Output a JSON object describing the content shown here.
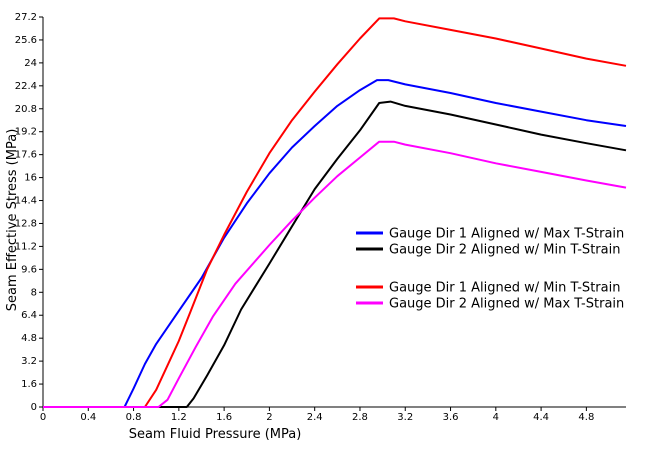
{
  "chart_data": {
    "type": "line",
    "title": "",
    "xlabel": "Seam Fluid Pressure (MPa)",
    "ylabel": "Seam Effective Stress (MPa)",
    "xlim": [
      0,
      5.15
    ],
    "ylim": [
      0,
      27.2
    ],
    "x_ticks": [
      0,
      0.4,
      0.8,
      1.2,
      1.6,
      2,
      2.4,
      2.8,
      3.2,
      3.6,
      4,
      4.4,
      4.8
    ],
    "x_tick_labels": [
      "0",
      "0.4",
      "0.8",
      "1.2",
      "1.6",
      "2",
      "2.4",
      "2.8",
      "3.2",
      "3.6",
      "4",
      "4.4",
      "4.8"
    ],
    "y_ticks": [
      0,
      1.6,
      3.2,
      4.8,
      6.4,
      8,
      9.6,
      11.2,
      12.8,
      14.4,
      16,
      17.6,
      19.2,
      20.8,
      22.4,
      24,
      25.6,
      27.2
    ],
    "y_tick_labels": [
      "0",
      "1.6",
      "3.2",
      "4.8",
      "6.4",
      "8",
      "9.6",
      "11.2",
      "12.8",
      "14.4",
      "16",
      "17.6",
      "19.2",
      "20.8",
      "22.4",
      "24",
      "25.6",
      "27.2"
    ],
    "grid": false,
    "legend_position": "right-middle",
    "series": [
      {
        "name": "Gauge Dir 1 Aligned w/ Max T-Strain",
        "color": "#0000ff",
        "points": [
          [
            0,
            0
          ],
          [
            0.72,
            0
          ],
          [
            0.8,
            1.3
          ],
          [
            0.9,
            3.0
          ],
          [
            1.0,
            4.4
          ],
          [
            1.2,
            6.7
          ],
          [
            1.4,
            9.0
          ],
          [
            1.6,
            11.8
          ],
          [
            1.8,
            14.2
          ],
          [
            2.0,
            16.3
          ],
          [
            2.2,
            18.1
          ],
          [
            2.4,
            19.6
          ],
          [
            2.6,
            21.0
          ],
          [
            2.8,
            22.1
          ],
          [
            2.95,
            22.8
          ],
          [
            3.05,
            22.8
          ],
          [
            3.2,
            22.5
          ],
          [
            3.6,
            21.9
          ],
          [
            4.0,
            21.2
          ],
          [
            4.4,
            20.6
          ],
          [
            4.8,
            20.0
          ],
          [
            5.15,
            19.6
          ]
        ]
      },
      {
        "name": "Gauge Dir 2 Aligned w/ Min T-Strain",
        "color": "#000000",
        "points": [
          [
            0,
            0
          ],
          [
            1.27,
            0
          ],
          [
            1.33,
            0.6
          ],
          [
            1.45,
            2.2
          ],
          [
            1.6,
            4.3
          ],
          [
            1.75,
            6.8
          ],
          [
            2.0,
            10.0
          ],
          [
            2.2,
            12.6
          ],
          [
            2.4,
            15.2
          ],
          [
            2.6,
            17.3
          ],
          [
            2.8,
            19.3
          ],
          [
            2.97,
            21.2
          ],
          [
            3.07,
            21.3
          ],
          [
            3.2,
            21.0
          ],
          [
            3.6,
            20.4
          ],
          [
            4.0,
            19.7
          ],
          [
            4.4,
            19.0
          ],
          [
            4.8,
            18.4
          ],
          [
            5.15,
            17.9
          ]
        ]
      },
      {
        "name": "Gauge Dir 1 Aligned w/ Min T-Strain",
        "color": "#ff0000",
        "points": [
          [
            0,
            0
          ],
          [
            0.9,
            0
          ],
          [
            1.0,
            1.2
          ],
          [
            1.1,
            2.9
          ],
          [
            1.2,
            4.6
          ],
          [
            1.3,
            6.6
          ],
          [
            1.45,
            9.6
          ],
          [
            1.6,
            12.0
          ],
          [
            1.8,
            15.0
          ],
          [
            2.0,
            17.7
          ],
          [
            2.2,
            20.0
          ],
          [
            2.4,
            22.0
          ],
          [
            2.6,
            23.9
          ],
          [
            2.8,
            25.7
          ],
          [
            2.97,
            27.1
          ],
          [
            3.1,
            27.1
          ],
          [
            3.2,
            26.9
          ],
          [
            3.6,
            26.3
          ],
          [
            4.0,
            25.7
          ],
          [
            4.4,
            25.0
          ],
          [
            4.8,
            24.3
          ],
          [
            5.15,
            23.8
          ]
        ]
      },
      {
        "name": "Gauge Dir 2 Aligned w/ Max T-Strain",
        "color": "#ff00ff",
        "points": [
          [
            0,
            0
          ],
          [
            1.02,
            0
          ],
          [
            1.1,
            0.5
          ],
          [
            1.2,
            2.0
          ],
          [
            1.35,
            4.2
          ],
          [
            1.5,
            6.3
          ],
          [
            1.7,
            8.6
          ],
          [
            2.0,
            11.3
          ],
          [
            2.2,
            13.0
          ],
          [
            2.4,
            14.6
          ],
          [
            2.6,
            16.1
          ],
          [
            2.8,
            17.4
          ],
          [
            2.97,
            18.5
          ],
          [
            3.1,
            18.5
          ],
          [
            3.2,
            18.3
          ],
          [
            3.6,
            17.7
          ],
          [
            4.0,
            17.0
          ],
          [
            4.4,
            16.4
          ],
          [
            4.8,
            15.8
          ],
          [
            5.15,
            15.3
          ]
        ]
      }
    ],
    "legend_groups": [
      [
        0,
        1
      ],
      [
        2,
        3
      ]
    ]
  }
}
